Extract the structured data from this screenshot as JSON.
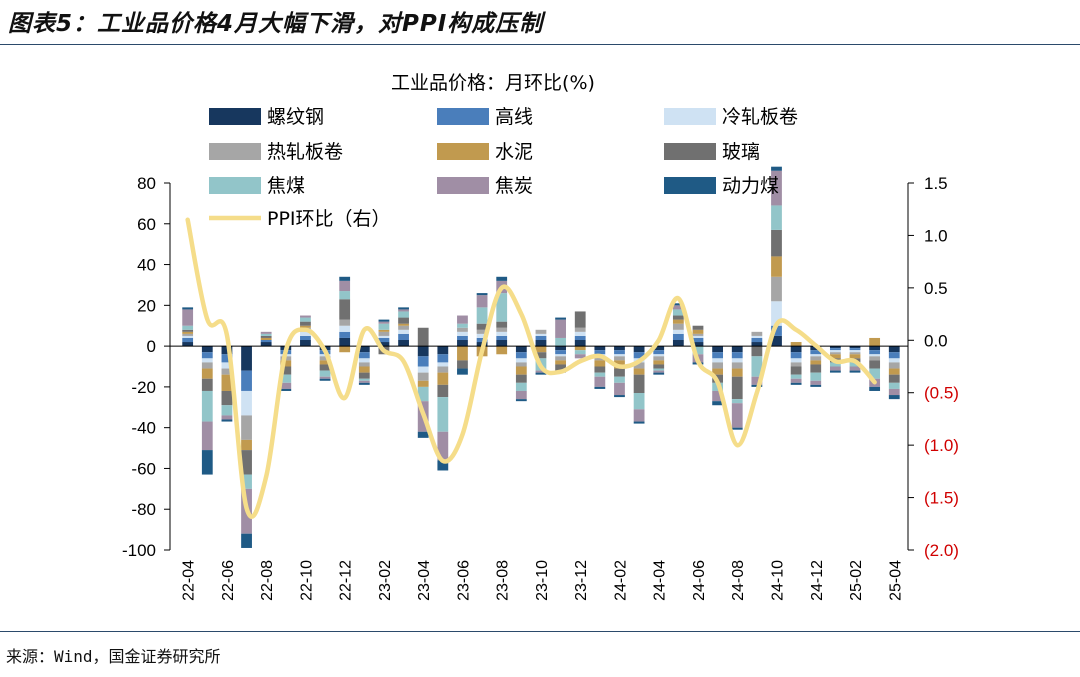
{
  "page": {
    "title": "图表5：工业品价格4月大幅下滑，对PPI构成压制",
    "source": "来源：Wind，国金证券研究所"
  },
  "chart_data": {
    "type": "bar",
    "stacked": true,
    "title": "工业品价格：月环比(%)",
    "x_tick_labels": [
      "22-04",
      "22-06",
      "22-08",
      "22-10",
      "22-12",
      "23-02",
      "23-04",
      "23-06",
      "23-08",
      "23-10",
      "23-12",
      "24-02",
      "24-04",
      "24-06",
      "24-08",
      "24-10",
      "24-12",
      "25-02",
      "25-04"
    ],
    "categories": [
      "22-04",
      "22-05",
      "22-06",
      "22-07",
      "22-08",
      "22-09",
      "22-10",
      "22-11",
      "22-12",
      "23-01",
      "23-02",
      "23-03",
      "23-04",
      "23-05",
      "23-06",
      "23-07",
      "23-08",
      "23-09",
      "23-10",
      "23-11",
      "23-12",
      "24-01",
      "24-02",
      "24-03",
      "24-04",
      "24-05",
      "24-06",
      "24-07",
      "24-08",
      "24-09",
      "24-10",
      "24-11",
      "24-12",
      "25-01",
      "25-02",
      "25-03",
      "25-04"
    ],
    "y_left": {
      "min": -100,
      "max": 80,
      "ticks": [
        "80",
        "60",
        "40",
        "20",
        "0",
        "-20",
        "-40",
        "-60",
        "-80",
        "-100"
      ]
    },
    "y_right": {
      "min": -2.0,
      "max": 1.5,
      "ticks": [
        "1.5",
        "1.0",
        "0.5",
        "0.0",
        "(0.5)",
        "(1.0)",
        "(1.5)",
        "(2.0)"
      ],
      "negative_color": "#d00000"
    },
    "legend_columns": 3,
    "series": [
      {
        "name": "螺纹钢",
        "color": "#17375e",
        "values": [
          2,
          -3,
          -4,
          -12,
          2,
          -2,
          3,
          -2,
          4,
          -3,
          2,
          3,
          -5,
          -4,
          3,
          2,
          3,
          -3,
          3,
          -2,
          3,
          -2,
          -2,
          -3,
          -2,
          3,
          2,
          -3,
          -3,
          2,
          5,
          -3,
          -2,
          -1,
          -1,
          -2,
          -3
        ]
      },
      {
        "name": "高线",
        "color": "#4a7ebb",
        "values": [
          2,
          -3,
          -4,
          -10,
          1,
          -2,
          2,
          -2,
          3,
          -3,
          2,
          3,
          -5,
          -4,
          2,
          2,
          2,
          -3,
          2,
          -2,
          2,
          -2,
          -2,
          -3,
          -2,
          3,
          2,
          -3,
          -3,
          2,
          5,
          -3,
          -2,
          -1,
          -1,
          -2,
          -3
        ]
      },
      {
        "name": "冷轧板卷",
        "color": "#cfe2f3",
        "values": [
          1,
          -2,
          -3,
          -12,
          0,
          -1,
          2,
          -1,
          3,
          -2,
          1,
          2,
          -3,
          -2,
          2,
          2,
          2,
          -2,
          1,
          -1,
          2,
          -1,
          -1,
          -2,
          -1,
          2,
          1,
          -2,
          -2,
          1,
          12,
          -2,
          -1,
          -1,
          -1,
          -1,
          -2
        ]
      },
      {
        "name": "热轧板卷",
        "color": "#a6a6a6",
        "values": [
          1,
          -3,
          -3,
          -12,
          0,
          -2,
          2,
          -2,
          3,
          -2,
          2,
          2,
          -4,
          -3,
          2,
          2,
          2,
          -2,
          2,
          -2,
          2,
          -2,
          -2,
          -3,
          -2,
          3,
          1,
          -3,
          -3,
          2,
          12,
          -2,
          -2,
          -1,
          -1,
          -2,
          -3
        ]
      },
      {
        "name": "水泥",
        "color": "#c19a4f",
        "values": [
          1,
          -5,
          -8,
          -5,
          1,
          -3,
          1,
          -2,
          -3,
          -3,
          1,
          1,
          -3,
          -6,
          -7,
          -5,
          -4,
          -4,
          -3,
          -2,
          -2,
          -3,
          -4,
          -3,
          -2,
          2,
          2,
          -3,
          -4,
          0,
          10,
          2,
          -2,
          -2,
          -2,
          4,
          -3
        ]
      },
      {
        "name": "玻璃",
        "color": "#707070",
        "values": [
          1,
          -6,
          -7,
          -12,
          1,
          -4,
          2,
          -3,
          10,
          -3,
          -4,
          3,
          9,
          -6,
          -4,
          3,
          3,
          -4,
          -3,
          -4,
          8,
          -3,
          -4,
          -9,
          -2,
          2,
          2,
          -4,
          -11,
          -5,
          13,
          -4,
          -4,
          -2,
          -2,
          -4,
          -4
        ]
      },
      {
        "name": "焦煤",
        "color": "#92c5c9",
        "values": [
          2,
          -15,
          -5,
          -7,
          1,
          -4,
          2,
          -3,
          4,
          -1,
          3,
          3,
          -7,
          -17,
          2,
          8,
          14,
          -4,
          -6,
          4,
          -2,
          -2,
          -3,
          -8,
          -1,
          3,
          -4,
          -4,
          -2,
          -10,
          12,
          -2,
          -4,
          -2,
          -2,
          -5,
          -3
        ]
      },
      {
        "name": "焦炭",
        "color": "#a08ea5",
        "values": [
          8,
          -14,
          -2,
          -22,
          1,
          -3,
          1,
          -1,
          5,
          -1,
          1,
          1,
          -15,
          -14,
          4,
          6,
          6,
          -4,
          -1,
          9,
          -2,
          -5,
          -6,
          -6,
          -1,
          2,
          -4,
          -5,
          -12,
          -4,
          17,
          -2,
          -2,
          -2,
          -2,
          -4,
          -3
        ]
      },
      {
        "name": "动力煤",
        "color": "#1f5a85",
        "values": [
          1,
          -12,
          -1,
          -7,
          0,
          -1,
          0,
          -1,
          2,
          -1,
          1,
          1,
          -3,
          -5,
          -3,
          1,
          2,
          -1,
          -1,
          1,
          0,
          -1,
          -1,
          -1,
          -1,
          1,
          -1,
          -2,
          -1,
          -1,
          2,
          -1,
          -1,
          -1,
          -1,
          -2,
          -2
        ]
      }
    ],
    "line_series": {
      "name": "PPI环比（右）",
      "color": "#f5dd8a",
      "axis": "right",
      "values": [
        1.15,
        0.2,
        0.05,
        -1.6,
        -1.3,
        -0.1,
        0.1,
        -0.1,
        -0.55,
        0.1,
        -0.1,
        -0.2,
        -0.7,
        -1.15,
        -0.9,
        -0.1,
        0.5,
        0.25,
        -0.25,
        -0.3,
        -0.2,
        -0.15,
        -0.25,
        -0.2,
        0.0,
        0.4,
        -0.2,
        -0.4,
        -1.0,
        -0.5,
        0.15,
        0.1,
        -0.05,
        -0.2,
        -0.2,
        -0.4
      ]
    }
  }
}
